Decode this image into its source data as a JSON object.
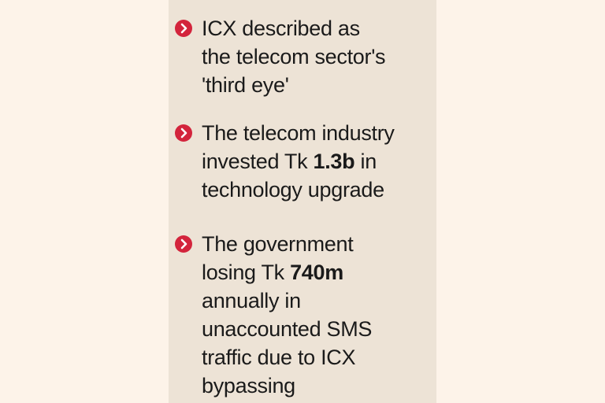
{
  "bullets": [
    {
      "icon": "chevron-right-circle-icon",
      "lines": [
        [
          "ICX described as"
        ],
        [
          "the telecom sector's"
        ],
        [
          "'third eye'"
        ]
      ]
    },
    {
      "icon": "chevron-right-circle-icon",
      "lines": [
        [
          "The telecom industry"
        ],
        [
          "invested Tk ",
          "1.3b",
          " in"
        ],
        [
          "technology upgrade"
        ]
      ]
    },
    {
      "icon": "chevron-right-circle-icon",
      "lines": [
        [
          "The government"
        ],
        [
          "losing Tk ",
          "740m"
        ],
        [
          "annually in"
        ],
        [
          "unaccounted SMS"
        ],
        [
          "traffic due to ICX"
        ],
        [
          "bypassing"
        ]
      ]
    }
  ],
  "colors": {
    "page_background": "#fdf3e9",
    "panel_background": "#ede3d6",
    "bullet_icon": "#d3243c",
    "text": "#1a1a1a"
  }
}
